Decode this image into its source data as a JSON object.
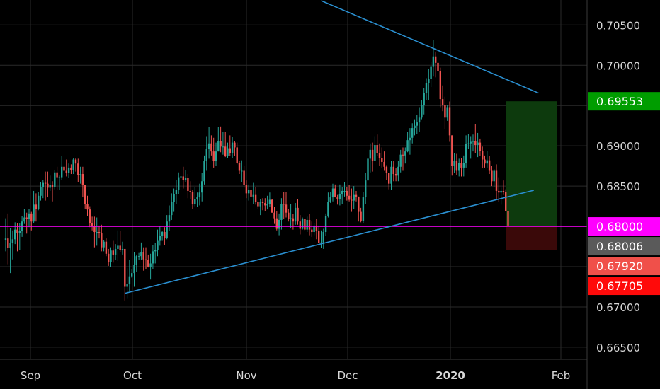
{
  "chart_data": {
    "type": "candlestick",
    "y_range": [
      0.6635,
      0.7081
    ],
    "y_ticks": [
      "0.70500",
      "0.70000",
      "0.69000",
      "0.68500",
      "0.67000",
      "0.66500"
    ],
    "x_labels": [
      {
        "label": "Sep",
        "bold": false
      },
      {
        "label": "Oct",
        "bold": false
      },
      {
        "label": "Nov",
        "bold": false
      },
      {
        "label": "Dec",
        "bold": false
      },
      {
        "label": "2020",
        "bold": true
      },
      {
        "label": "Feb",
        "bold": false
      }
    ],
    "price_tags": [
      {
        "value": 0.69553,
        "text": "0.69553",
        "bg": "#009d00",
        "fg": "#ffffff"
      },
      {
        "value": 0.68,
        "text": "0.68000",
        "bg": "#ff00ff",
        "fg": "#ffffff"
      },
      {
        "value": 0.68006,
        "text": "0.68006",
        "bg": "#5a5a5a",
        "fg": "#ffffff"
      },
      {
        "value": 0.6792,
        "text": "0.67920",
        "bg": "#f0504a",
        "fg": "#ffffff"
      },
      {
        "value": 0.67705,
        "text": "0.67705",
        "bg": "#ff0a0a",
        "fg": "#ffffff"
      }
    ],
    "horizontal_line": {
      "value": 0.68,
      "color": "#ff00ff"
    },
    "trendlines": [
      {
        "name": "upper-resistance",
        "from": {
          "bar": 135,
          "value": 0.70801
        },
        "to": {
          "bar": 228,
          "value": 0.69655
        },
        "color": "#2a8fd0"
      },
      {
        "name": "lower-support",
        "from": {
          "bar": 51,
          "value": 0.67169
        },
        "to": {
          "bar": 226,
          "value": 0.68448
        },
        "color": "#2a8fd0"
      }
    ],
    "zones": [
      {
        "name": "target-zone",
        "bar_from": 214,
        "bar_to": 236,
        "value_from": 0.69553,
        "value_to": 0.68,
        "color": "#0d3a0d"
      },
      {
        "name": "stop-zone",
        "bar_from": 214,
        "bar_to": 236,
        "value_from": 0.68,
        "value_to": 0.67705,
        "color": "#3a0909"
      }
    ],
    "colors": {
      "up": "#26a69a",
      "down": "#ef5350",
      "grid": "#2a2a2a"
    },
    "candles": [
      [
        0.6783,
        0.681,
        0.6769,
        0.6785
      ],
      [
        0.6785,
        0.6816,
        0.6753,
        0.6773
      ],
      [
        0.6773,
        0.6798,
        0.6742,
        0.6779
      ],
      [
        0.6779,
        0.6795,
        0.6759,
        0.6784
      ],
      [
        0.6784,
        0.6805,
        0.6778,
        0.6796
      ],
      [
        0.6796,
        0.6804,
        0.6769,
        0.6792
      ],
      [
        0.6792,
        0.6804,
        0.6771,
        0.6794
      ],
      [
        0.6794,
        0.6813,
        0.6787,
        0.6806
      ],
      [
        0.6806,
        0.6822,
        0.6803,
        0.6811
      ],
      [
        0.6811,
        0.6817,
        0.6791,
        0.6809
      ],
      [
        0.6809,
        0.6822,
        0.6799,
        0.6816
      ],
      [
        0.6816,
        0.6818,
        0.6795,
        0.6806
      ],
      [
        0.6806,
        0.6844,
        0.6804,
        0.6827
      ],
      [
        0.6827,
        0.6841,
        0.6806,
        0.6822
      ],
      [
        0.6822,
        0.6843,
        0.682,
        0.6838
      ],
      [
        0.6838,
        0.6855,
        0.6832,
        0.6849
      ],
      [
        0.6849,
        0.6858,
        0.6835,
        0.6854
      ],
      [
        0.6854,
        0.6868,
        0.6832,
        0.6853
      ],
      [
        0.6853,
        0.6868,
        0.6836,
        0.6848
      ],
      [
        0.6848,
        0.6863,
        0.6844,
        0.6851
      ],
      [
        0.6851,
        0.6856,
        0.6831,
        0.6849
      ],
      [
        0.6849,
        0.687,
        0.6846,
        0.6867
      ],
      [
        0.6867,
        0.6874,
        0.6845,
        0.6861
      ],
      [
        0.6861,
        0.6863,
        0.6845,
        0.6861
      ],
      [
        0.6861,
        0.6887,
        0.6858,
        0.6874
      ],
      [
        0.6874,
        0.6884,
        0.6865,
        0.6869
      ],
      [
        0.6869,
        0.6883,
        0.6862,
        0.6866
      ],
      [
        0.6866,
        0.6878,
        0.686,
        0.6873
      ],
      [
        0.6873,
        0.6877,
        0.6865,
        0.687
      ],
      [
        0.687,
        0.6885,
        0.6865,
        0.6883
      ],
      [
        0.6883,
        0.6885,
        0.6868,
        0.6878
      ],
      [
        0.6878,
        0.6884,
        0.6855,
        0.6864
      ],
      [
        0.6864,
        0.6874,
        0.6853,
        0.6865
      ],
      [
        0.6865,
        0.6874,
        0.6836,
        0.6851
      ],
      [
        0.6851,
        0.6851,
        0.6822,
        0.6828
      ],
      [
        0.6828,
        0.6838,
        0.6813,
        0.6821
      ],
      [
        0.6821,
        0.6825,
        0.6799,
        0.6804
      ],
      [
        0.6804,
        0.6812,
        0.6795,
        0.68
      ],
      [
        0.68,
        0.6812,
        0.6774,
        0.6793
      ],
      [
        0.6793,
        0.6811,
        0.6776,
        0.6793
      ],
      [
        0.6793,
        0.6801,
        0.6785,
        0.6792
      ],
      [
        0.6792,
        0.6802,
        0.6769,
        0.6774
      ],
      [
        0.6774,
        0.6783,
        0.6769,
        0.6781
      ],
      [
        0.6781,
        0.6785,
        0.6763,
        0.6766
      ],
      [
        0.6766,
        0.6772,
        0.6751,
        0.6756
      ],
      [
        0.6756,
        0.6774,
        0.675,
        0.677
      ],
      [
        0.677,
        0.6782,
        0.6755,
        0.6765
      ],
      [
        0.6765,
        0.6778,
        0.6758,
        0.6772
      ],
      [
        0.6772,
        0.6795,
        0.6757,
        0.6776
      ],
      [
        0.6776,
        0.6794,
        0.6768,
        0.6771
      ],
      [
        0.6771,
        0.6781,
        0.6765,
        0.6772
      ],
      [
        0.6772,
        0.6772,
        0.6708,
        0.6725
      ],
      [
        0.6725,
        0.6748,
        0.671,
        0.6728
      ],
      [
        0.6728,
        0.6758,
        0.6719,
        0.6738
      ],
      [
        0.6738,
        0.6747,
        0.6736,
        0.6742
      ],
      [
        0.6742,
        0.6768,
        0.6725,
        0.6752
      ],
      [
        0.6752,
        0.6765,
        0.6743,
        0.6763
      ],
      [
        0.6763,
        0.6767,
        0.6758,
        0.6763
      ],
      [
        0.6763,
        0.678,
        0.6758,
        0.6768
      ],
      [
        0.6768,
        0.6774,
        0.6745,
        0.6759
      ],
      [
        0.6759,
        0.6774,
        0.6747,
        0.6758
      ],
      [
        0.6758,
        0.6765,
        0.6749,
        0.675
      ],
      [
        0.675,
        0.6766,
        0.6734,
        0.6754
      ],
      [
        0.6754,
        0.6777,
        0.6747,
        0.6769
      ],
      [
        0.6769,
        0.6779,
        0.6754,
        0.6771
      ],
      [
        0.6771,
        0.6796,
        0.6763,
        0.6782
      ],
      [
        0.6782,
        0.68,
        0.6776,
        0.6788
      ],
      [
        0.6788,
        0.6794,
        0.6782,
        0.6793
      ],
      [
        0.6793,
        0.6799,
        0.6777,
        0.6786
      ],
      [
        0.6786,
        0.6814,
        0.6784,
        0.6806
      ],
      [
        0.6806,
        0.6826,
        0.6794,
        0.6814
      ],
      [
        0.6814,
        0.6841,
        0.6808,
        0.683
      ],
      [
        0.683,
        0.6847,
        0.6818,
        0.684
      ],
      [
        0.684,
        0.6858,
        0.6828,
        0.6845
      ],
      [
        0.6845,
        0.6867,
        0.684,
        0.6861
      ],
      [
        0.6861,
        0.6874,
        0.6854,
        0.6862
      ],
      [
        0.6862,
        0.6874,
        0.6847,
        0.6858
      ],
      [
        0.6858,
        0.687,
        0.6855,
        0.686
      ],
      [
        0.686,
        0.6865,
        0.6835,
        0.6844
      ],
      [
        0.6844,
        0.6856,
        0.6834,
        0.6843
      ],
      [
        0.6843,
        0.6845,
        0.6822,
        0.6828
      ],
      [
        0.6828,
        0.6849,
        0.6825,
        0.6834
      ],
      [
        0.6834,
        0.6842,
        0.6824,
        0.6836
      ],
      [
        0.6836,
        0.6853,
        0.6826,
        0.6842
      ],
      [
        0.6842,
        0.6866,
        0.6831,
        0.6856
      ],
      [
        0.6856,
        0.6888,
        0.6852,
        0.6881
      ],
      [
        0.6881,
        0.6912,
        0.6869,
        0.6896
      ],
      [
        0.6896,
        0.6923,
        0.6884,
        0.6903
      ],
      [
        0.6903,
        0.6913,
        0.6888,
        0.6893
      ],
      [
        0.6893,
        0.691,
        0.6873,
        0.6881
      ],
      [
        0.6881,
        0.6904,
        0.6875,
        0.6893
      ],
      [
        0.6893,
        0.6923,
        0.6893,
        0.6906
      ],
      [
        0.6906,
        0.6924,
        0.6892,
        0.6899
      ],
      [
        0.6899,
        0.6917,
        0.6889,
        0.6899
      ],
      [
        0.6899,
        0.6917,
        0.6886,
        0.6887
      ],
      [
        0.6887,
        0.6904,
        0.6885,
        0.6897
      ],
      [
        0.6897,
        0.6913,
        0.6887,
        0.6891
      ],
      [
        0.6891,
        0.6911,
        0.6885,
        0.6904
      ],
      [
        0.6904,
        0.6906,
        0.6887,
        0.6898
      ],
      [
        0.6898,
        0.6904,
        0.6877,
        0.6879
      ],
      [
        0.6879,
        0.6881,
        0.6865,
        0.6869
      ],
      [
        0.6869,
        0.6882,
        0.6855,
        0.6869
      ],
      [
        0.6869,
        0.6875,
        0.6848,
        0.6851
      ],
      [
        0.6851,
        0.6857,
        0.6835,
        0.6841
      ],
      [
        0.6841,
        0.6852,
        0.6832,
        0.6845
      ],
      [
        0.6845,
        0.6856,
        0.6832,
        0.6837
      ],
      [
        0.6837,
        0.6854,
        0.6828,
        0.6839
      ],
      [
        0.6839,
        0.6849,
        0.6827,
        0.683
      ],
      [
        0.683,
        0.6832,
        0.6822,
        0.6825
      ],
      [
        0.6825,
        0.6834,
        0.6814,
        0.683
      ],
      [
        0.683,
        0.6835,
        0.682,
        0.6829
      ],
      [
        0.6829,
        0.6835,
        0.6819,
        0.6826
      ],
      [
        0.6826,
        0.6838,
        0.6821,
        0.6828
      ],
      [
        0.6828,
        0.6842,
        0.6824,
        0.6833
      ],
      [
        0.6833,
        0.6834,
        0.6817,
        0.6817
      ],
      [
        0.6817,
        0.6824,
        0.6803,
        0.681
      ],
      [
        0.681,
        0.6819,
        0.6795,
        0.6797
      ],
      [
        0.6797,
        0.6816,
        0.6789,
        0.6808
      ],
      [
        0.6808,
        0.6835,
        0.6796,
        0.6828
      ],
      [
        0.6828,
        0.6843,
        0.6809,
        0.6827
      ],
      [
        0.6827,
        0.6843,
        0.6811,
        0.6817
      ],
      [
        0.6817,
        0.6822,
        0.6806,
        0.6809
      ],
      [
        0.6809,
        0.6828,
        0.6798,
        0.681
      ],
      [
        0.681,
        0.6815,
        0.6796,
        0.6806
      ],
      [
        0.6806,
        0.6829,
        0.6802,
        0.6823
      ],
      [
        0.6823,
        0.6834,
        0.6802,
        0.6806
      ],
      [
        0.6806,
        0.6814,
        0.679,
        0.6797
      ],
      [
        0.6797,
        0.6811,
        0.6796,
        0.6809
      ],
      [
        0.6809,
        0.6809,
        0.6795,
        0.6796
      ],
      [
        0.6796,
        0.6812,
        0.6793,
        0.6808
      ],
      [
        0.6808,
        0.6815,
        0.6789,
        0.6796
      ],
      [
        0.6796,
        0.6806,
        0.6787,
        0.6793
      ],
      [
        0.6793,
        0.6804,
        0.6789,
        0.6801
      ],
      [
        0.6801,
        0.6809,
        0.6784,
        0.6794
      ],
      [
        0.6794,
        0.6801,
        0.6779,
        0.6779
      ],
      [
        0.6779,
        0.6795,
        0.6773,
        0.678
      ],
      [
        0.678,
        0.6797,
        0.6772,
        0.6793
      ],
      [
        0.6793,
        0.6816,
        0.6788,
        0.6813
      ],
      [
        0.6813,
        0.6842,
        0.6811,
        0.683
      ],
      [
        0.683,
        0.6843,
        0.6829,
        0.6836
      ],
      [
        0.6836,
        0.6853,
        0.6831,
        0.6847
      ],
      [
        0.6847,
        0.6852,
        0.6836,
        0.6836
      ],
      [
        0.6836,
        0.6839,
        0.6827,
        0.6834
      ],
      [
        0.6834,
        0.6852,
        0.6826,
        0.684
      ],
      [
        0.684,
        0.6849,
        0.6828,
        0.6844
      ],
      [
        0.6844,
        0.6855,
        0.6837,
        0.6844
      ],
      [
        0.6844,
        0.6849,
        0.6832,
        0.6838
      ],
      [
        0.6838,
        0.6851,
        0.6831,
        0.6833
      ],
      [
        0.6833,
        0.6847,
        0.6818,
        0.6832
      ],
      [
        0.6832,
        0.685,
        0.6822,
        0.6839
      ],
      [
        0.6839,
        0.6844,
        0.6831,
        0.6837
      ],
      [
        0.6837,
        0.6837,
        0.6806,
        0.6818
      ],
      [
        0.6818,
        0.6823,
        0.6805,
        0.6807
      ],
      [
        0.6807,
        0.6843,
        0.6804,
        0.6836
      ],
      [
        0.6836,
        0.6866,
        0.6828,
        0.6857
      ],
      [
        0.6857,
        0.6891,
        0.6852,
        0.6884
      ],
      [
        0.6884,
        0.6903,
        0.6867,
        0.6895
      ],
      [
        0.6895,
        0.6904,
        0.6868,
        0.6881
      ],
      [
        0.6881,
        0.6912,
        0.6881,
        0.6901
      ],
      [
        0.6901,
        0.6914,
        0.6887,
        0.6891
      ],
      [
        0.6891,
        0.6903,
        0.6875,
        0.6885
      ],
      [
        0.6885,
        0.6898,
        0.6873,
        0.688
      ],
      [
        0.688,
        0.6893,
        0.6869,
        0.6874
      ],
      [
        0.6874,
        0.6876,
        0.6858,
        0.6866
      ],
      [
        0.6866,
        0.6866,
        0.6846,
        0.6853
      ],
      [
        0.6853,
        0.6881,
        0.6845,
        0.6874
      ],
      [
        0.6874,
        0.6881,
        0.6856,
        0.6865
      ],
      [
        0.6865,
        0.6872,
        0.6856,
        0.6863
      ],
      [
        0.6863,
        0.6881,
        0.6856,
        0.6874
      ],
      [
        0.6874,
        0.6895,
        0.6867,
        0.6889
      ],
      [
        0.6889,
        0.6898,
        0.6869,
        0.6888
      ],
      [
        0.6888,
        0.6898,
        0.6878,
        0.6893
      ],
      [
        0.6893,
        0.6917,
        0.6892,
        0.6907
      ],
      [
        0.6907,
        0.6922,
        0.6889,
        0.691
      ],
      [
        0.691,
        0.6928,
        0.6903,
        0.6922
      ],
      [
        0.6922,
        0.6933,
        0.6913,
        0.6925
      ],
      [
        0.6925,
        0.6938,
        0.6915,
        0.6929
      ],
      [
        0.6929,
        0.6948,
        0.6917,
        0.6935
      ],
      [
        0.6935,
        0.6957,
        0.6933,
        0.6951
      ],
      [
        0.6951,
        0.6972,
        0.6939,
        0.6966
      ],
      [
        0.6966,
        0.6984,
        0.6957,
        0.6978
      ],
      [
        0.6978,
        0.6995,
        0.6957,
        0.6983
      ],
      [
        0.6983,
        0.7004,
        0.6973,
        0.6998
      ],
      [
        0.6998,
        0.7031,
        0.6986,
        0.7011
      ],
      [
        0.7011,
        0.7017,
        0.6985,
        0.7003
      ],
      [
        0.7003,
        0.7012,
        0.6991,
        0.6993
      ],
      [
        0.6993,
        0.6997,
        0.6948,
        0.6958
      ],
      [
        0.6958,
        0.6975,
        0.6943,
        0.6951
      ],
      [
        0.6951,
        0.6961,
        0.6921,
        0.6935
      ],
      [
        0.6935,
        0.6951,
        0.6931,
        0.6948
      ],
      [
        0.6948,
        0.6955,
        0.6905,
        0.6913
      ],
      [
        0.6913,
        0.6913,
        0.6863,
        0.6875
      ],
      [
        0.6875,
        0.6891,
        0.6866,
        0.6881
      ],
      [
        0.6881,
        0.689,
        0.6864,
        0.6869
      ],
      [
        0.6869,
        0.6884,
        0.6862,
        0.6879
      ],
      [
        0.6879,
        0.6885,
        0.6862,
        0.6873
      ],
      [
        0.6873,
        0.6888,
        0.6862,
        0.6879
      ],
      [
        0.6879,
        0.6913,
        0.6873,
        0.6902
      ],
      [
        0.6902,
        0.6915,
        0.6896,
        0.6903
      ],
      [
        0.6903,
        0.6912,
        0.6884,
        0.6905
      ],
      [
        0.6905,
        0.6914,
        0.6893,
        0.6906
      ],
      [
        0.6906,
        0.6927,
        0.6891,
        0.6901
      ],
      [
        0.6901,
        0.6916,
        0.6886,
        0.6904
      ],
      [
        0.6904,
        0.6909,
        0.6887,
        0.6894
      ],
      [
        0.6894,
        0.6899,
        0.6872,
        0.6883
      ],
      [
        0.6883,
        0.6888,
        0.6873,
        0.6878
      ],
      [
        0.6878,
        0.6894,
        0.6873,
        0.6882
      ],
      [
        0.6882,
        0.6887,
        0.6865,
        0.6869
      ],
      [
        0.6869,
        0.6875,
        0.685,
        0.6856
      ],
      [
        0.6856,
        0.6871,
        0.6849,
        0.6869
      ],
      [
        0.6869,
        0.6877,
        0.6834,
        0.6844
      ],
      [
        0.6844,
        0.6861,
        0.683,
        0.6842
      ],
      [
        0.6842,
        0.6848,
        0.6827,
        0.6844
      ],
      [
        0.6844,
        0.6857,
        0.6839,
        0.6843
      ],
      [
        0.6843,
        0.6846,
        0.6819,
        0.6819
      ],
      [
        0.6819,
        0.6823,
        0.6799,
        0.6801
      ]
    ]
  }
}
